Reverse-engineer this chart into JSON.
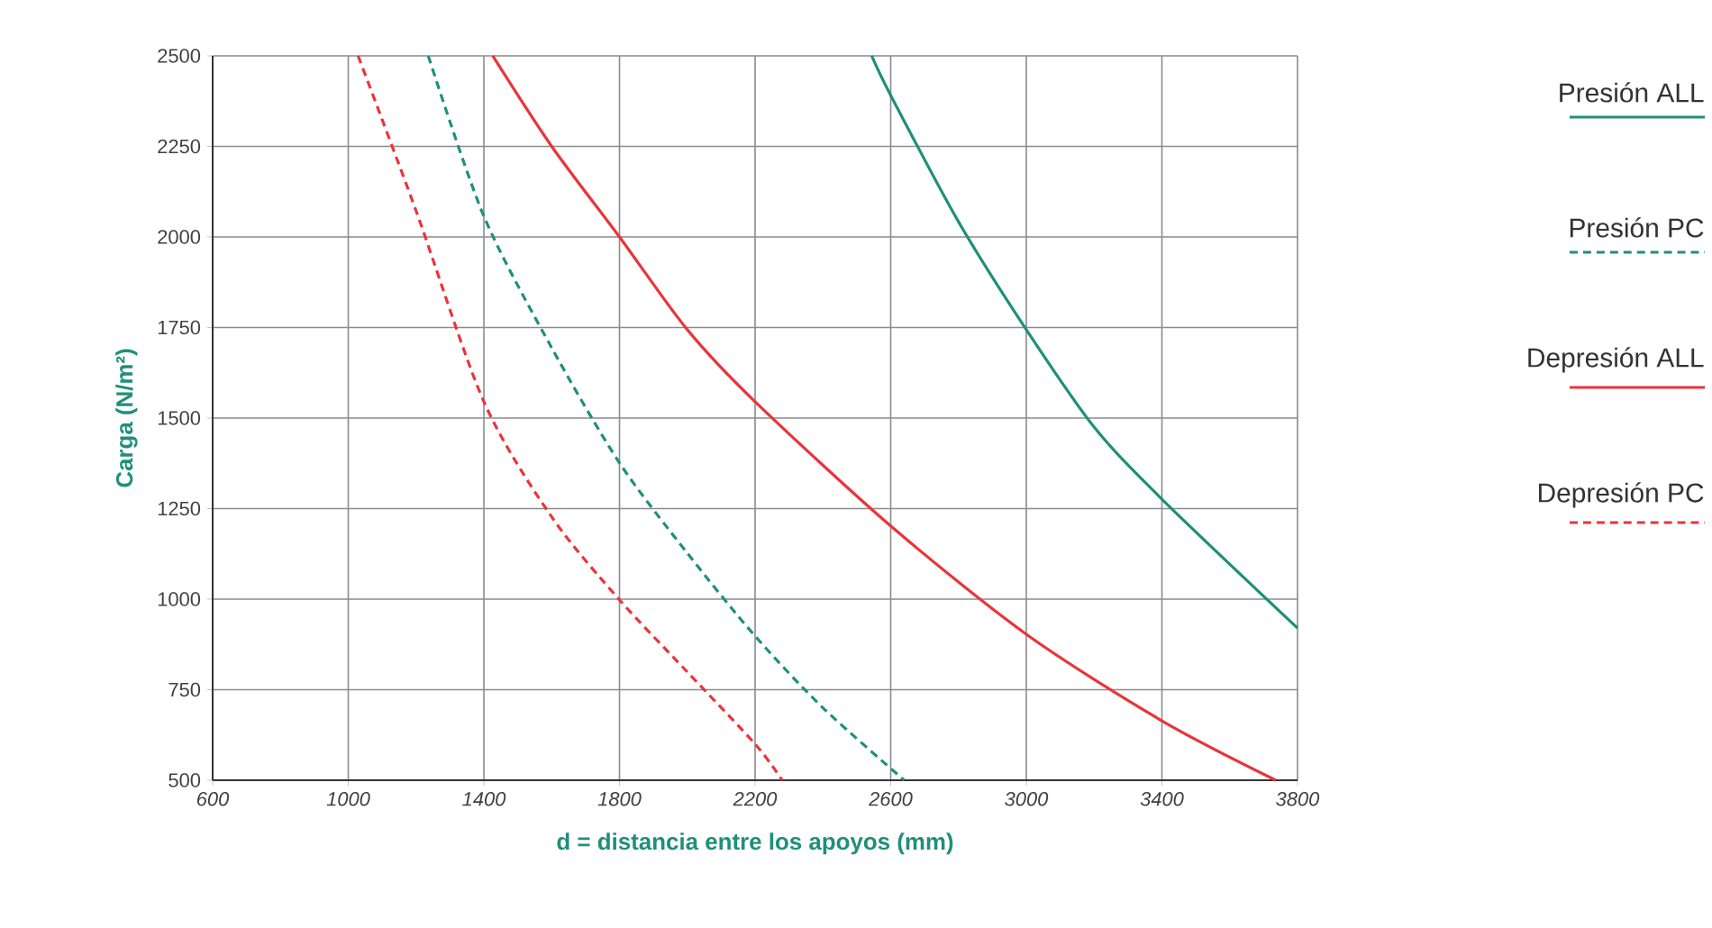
{
  "chart_data": {
    "type": "line",
    "xlabel": "d = distancia entre los apoyos (mm)",
    "ylabel": "Carga (N/m²)",
    "xlim": [
      600,
      3800
    ],
    "ylim": [
      500,
      2500
    ],
    "xticks": [
      600,
      1000,
      1400,
      1800,
      2200,
      2600,
      3000,
      3400,
      3800
    ],
    "yticks": [
      500,
      750,
      1000,
      1250,
      1500,
      1750,
      2000,
      2250,
      2500
    ],
    "grid": true,
    "legend": "right",
    "series": [
      {
        "name": "Presión ALL",
        "color": "#1f8f7a",
        "line_style": "solid",
        "x": [
          2544,
          2600,
          2800,
          3000,
          3200,
          3400,
          3800
        ],
        "values": [
          2500,
          2391,
          2042,
          1744,
          1475,
          1276,
          920
        ]
      },
      {
        "name": "Presión PC",
        "color": "#1f8f7a",
        "line_style": "dashed",
        "x": [
          1236,
          1400,
          1600,
          1800,
          2000,
          2200,
          2400,
          2640
        ],
        "values": [
          2500,
          2057,
          1694,
          1376,
          1127,
          898,
          700,
          500
        ]
      },
      {
        "name": "Depresión ALL",
        "color": "#e8353b",
        "line_style": "solid",
        "x": [
          1426,
          1600,
          1800,
          2000,
          2200,
          2600,
          3000,
          3400,
          3736
        ],
        "values": [
          2500,
          2250,
          2000,
          1744,
          1545,
          1202,
          903,
          664,
          500
        ]
      },
      {
        "name": "Depresión PC",
        "color": "#e8353b",
        "line_style": "dashed",
        "x": [
          1029,
          1200,
          1400,
          1600,
          1800,
          2000,
          2200,
          2280
        ],
        "values": [
          2500,
          2072,
          1545,
          1227,
          998,
          799,
          600,
          500
        ]
      }
    ]
  }
}
